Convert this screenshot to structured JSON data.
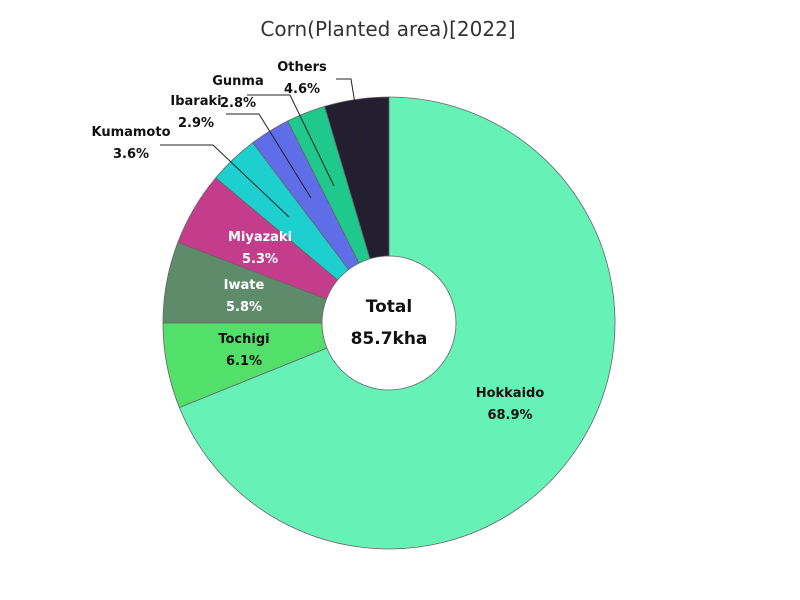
{
  "chart_data": {
    "type": "pie",
    "title": "Corn(Planted area)[2022]",
    "center_label": "Total",
    "center_value": "85.7kha",
    "slices": [
      {
        "name": "Hokkaido",
        "percent": 68.9,
        "label": "68.9%",
        "color": "#66f2b6"
      },
      {
        "name": "Tochigi",
        "percent": 6.1,
        "label": "6.1%",
        "color": "#52e06b"
      },
      {
        "name": "Iwate",
        "percent": 5.8,
        "label": "5.8%",
        "color": "#5e8c6a"
      },
      {
        "name": "Miyazaki",
        "percent": 5.3,
        "label": "5.3%",
        "color": "#c43d8c"
      },
      {
        "name": "Kumamoto",
        "percent": 3.6,
        "label": "3.6%",
        "color": "#1dcfcf"
      },
      {
        "name": "Ibaraki",
        "percent": 2.9,
        "label": "2.9%",
        "color": "#5f6ee8"
      },
      {
        "name": "Gunma",
        "percent": 2.8,
        "label": "2.8%",
        "color": "#1fc98e"
      },
      {
        "name": "Others",
        "percent": 4.6,
        "label": "4.6%",
        "color": "#231f30"
      }
    ]
  }
}
